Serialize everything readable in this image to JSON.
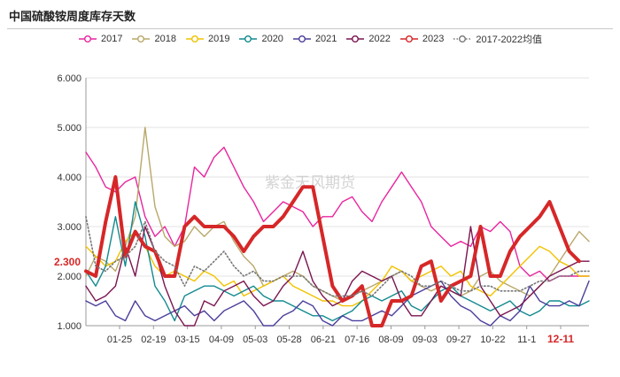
{
  "header": {
    "title": "中国硫酸铵周度库存天数"
  },
  "watermark": "紫金天风期货",
  "colors": {
    "2017": "#e8259f",
    "2018": "#b9a86a",
    "2019": "#f2c200",
    "2020": "#128a8f",
    "2021": "#4a3f9c",
    "2022": "#7a1550",
    "2023": "#d62728",
    "avg": "#777777",
    "current_value": "#d62728"
  },
  "chart_data": {
    "type": "line",
    "title": "中国硫酸铵周度库存天数",
    "ylim": [
      1.0,
      6.0
    ],
    "y_ticks": [
      "1.000",
      "2.000",
      "3.000",
      "4.000",
      "5.000",
      "6.000"
    ],
    "x_ticks": [
      "01-25",
      "02-19",
      "03-15",
      "04-09",
      "05-03",
      "05-28",
      "06-21",
      "07-16",
      "08-09",
      "09-03",
      "09-27",
      "10-22",
      "11-1",
      "12-11"
    ],
    "highlight_tick": "12-11",
    "current_value_label": "2.300",
    "grid": true,
    "legend": "top",
    "series": [
      {
        "name": "2017",
        "style": "solid",
        "width": 1.4,
        "marker": "circle",
        "values": [
          4.5,
          4.2,
          3.8,
          3.7,
          3.9,
          4.0,
          3.2,
          2.8,
          3.0,
          2.6,
          3.0,
          4.2,
          4.0,
          4.4,
          4.6,
          4.2,
          3.8,
          3.5,
          3.1,
          3.3,
          3.5,
          3.4,
          3.3,
          3.0,
          3.2,
          3.2,
          3.5,
          3.6,
          3.3,
          3.1,
          3.5,
          3.8,
          4.1,
          3.8,
          3.5,
          3.0,
          2.8,
          2.6,
          2.7,
          2.6,
          3.0,
          2.9,
          3.1,
          2.9,
          2.2,
          2.0,
          2.1,
          1.9,
          2.0,
          2.0,
          2.0,
          2.0
        ]
      },
      {
        "name": "2018",
        "style": "solid",
        "width": 1.4,
        "marker": "circle",
        "values": [
          2.0,
          2.4,
          2.3,
          2.1,
          2.6,
          3.2,
          5.0,
          3.4,
          2.8,
          2.6,
          2.7,
          3.0,
          2.8,
          3.0,
          3.1,
          2.7,
          2.4,
          2.2,
          1.8,
          1.9,
          2.0,
          2.1,
          2.0,
          1.8,
          1.7,
          1.6,
          1.5,
          1.6,
          1.7,
          1.8,
          1.9,
          2.0,
          2.1,
          1.9,
          1.8,
          1.7,
          1.8,
          1.7,
          1.6,
          1.7,
          2.0,
          2.1,
          1.9,
          1.8,
          1.7,
          1.6,
          1.8,
          2.0,
          2.3,
          2.6,
          2.9,
          2.7
        ]
      },
      {
        "name": "2019",
        "style": "solid",
        "width": 1.4,
        "marker": "circle",
        "values": [
          2.6,
          2.4,
          2.2,
          2.3,
          2.7,
          2.9,
          2.6,
          2.2,
          2.0,
          2.1,
          2.0,
          1.9,
          2.1,
          2.0,
          1.8,
          1.9,
          1.6,
          1.7,
          1.8,
          1.9,
          2.0,
          1.8,
          1.7,
          1.6,
          1.5,
          1.5,
          1.4,
          1.4,
          1.5,
          1.7,
          1.9,
          2.2,
          2.1,
          1.9,
          2.0,
          2.1,
          2.2,
          2.0,
          2.1,
          1.8,
          1.7,
          1.6,
          1.8,
          2.0,
          2.2,
          2.4,
          2.6,
          2.5,
          2.3,
          2.2,
          2.0,
          2.0
        ]
      },
      {
        "name": "2020",
        "style": "solid",
        "width": 1.4,
        "marker": "circle",
        "values": [
          2.1,
          1.8,
          2.2,
          3.2,
          2.2,
          3.5,
          2.8,
          1.8,
          1.5,
          1.1,
          1.6,
          1.7,
          1.8,
          1.8,
          1.7,
          1.6,
          1.7,
          1.8,
          1.6,
          1.5,
          1.5,
          1.4,
          1.3,
          1.2,
          1.2,
          1.1,
          1.2,
          1.3,
          1.5,
          1.6,
          1.5,
          1.6,
          1.7,
          1.4,
          1.3,
          1.5,
          1.7,
          1.8,
          1.6,
          1.5,
          1.4,
          1.3,
          1.4,
          1.5,
          1.3,
          1.2,
          1.3,
          1.5,
          1.5,
          1.4,
          1.4,
          1.5
        ]
      },
      {
        "name": "2021",
        "style": "solid",
        "width": 1.4,
        "marker": "circle",
        "values": [
          1.5,
          1.4,
          1.5,
          1.2,
          1.1,
          1.5,
          1.2,
          1.1,
          1.2,
          1.3,
          1.4,
          1.2,
          1.3,
          1.1,
          1.3,
          1.4,
          1.5,
          1.3,
          1.0,
          1.0,
          1.2,
          1.3,
          1.5,
          1.4,
          1.1,
          1.0,
          1.2,
          1.1,
          1.1,
          1.2,
          1.3,
          1.2,
          1.4,
          1.6,
          1.7,
          1.8,
          1.9,
          1.6,
          1.4,
          1.3,
          1.1,
          1.0,
          1.2,
          1.1,
          1.3,
          1.8,
          1.5,
          1.4,
          1.4,
          1.5,
          1.4,
          1.9
        ]
      },
      {
        "name": "2022",
        "style": "solid",
        "width": 1.4,
        "marker": "circle",
        "values": [
          1.8,
          1.5,
          1.6,
          1.8,
          2.6,
          2.0,
          3.0,
          2.5,
          1.8,
          1.3,
          1.0,
          1.0,
          1.5,
          1.4,
          1.7,
          1.8,
          1.9,
          1.6,
          1.4,
          1.5,
          1.8,
          2.0,
          2.5,
          1.9,
          1.6,
          1.4,
          1.5,
          1.9,
          2.1,
          2.0,
          1.9,
          2.0,
          1.5,
          1.2,
          1.2,
          1.5,
          1.8,
          1.7,
          1.6,
          3.0,
          1.8,
          1.5,
          1.2,
          1.3,
          1.4,
          1.6,
          1.8,
          2.0,
          2.1,
          2.2,
          2.3,
          2.3
        ]
      },
      {
        "name": "2023",
        "style": "solid",
        "width": 4,
        "marker": "circle",
        "values": [
          2.1,
          2.0,
          3.1,
          4.0,
          2.4,
          2.9,
          2.6,
          2.5,
          2.0,
          2.0,
          3.0,
          3.2,
          3.0,
          3.0,
          3.0,
          2.8,
          2.5,
          2.8,
          3.0,
          3.0,
          3.2,
          3.5,
          3.8,
          3.8,
          2.8,
          1.8,
          1.5,
          1.6,
          1.8,
          1.0,
          1.0,
          1.5,
          1.5,
          1.6,
          2.2,
          2.3,
          1.5,
          1.8,
          1.9,
          2.0,
          3.0,
          2.0,
          2.0,
          2.5,
          2.8,
          3.0,
          3.2,
          3.5,
          3.0,
          2.5,
          2.3,
          null
        ]
      },
      {
        "name": "2017-2022均值",
        "style": "dotted",
        "width": 1.6,
        "marker": "circle",
        "values": [
          3.2,
          2.2,
          2.1,
          2.3,
          2.4,
          2.6,
          3.1,
          2.5,
          2.3,
          2.2,
          1.8,
          2.2,
          2.1,
          2.3,
          2.5,
          2.2,
          2.0,
          2.1,
          1.9,
          1.9,
          2.0,
          2.0,
          2.0,
          1.8,
          1.7,
          1.6,
          1.6,
          1.6,
          1.7,
          1.6,
          1.8,
          2.0,
          2.1,
          2.0,
          1.8,
          1.8,
          1.9,
          1.8,
          1.7,
          1.7,
          1.8,
          1.8,
          1.7,
          1.7,
          1.7,
          1.8,
          1.9,
          1.9,
          2.0,
          2.0,
          2.1,
          2.1
        ]
      }
    ]
  }
}
